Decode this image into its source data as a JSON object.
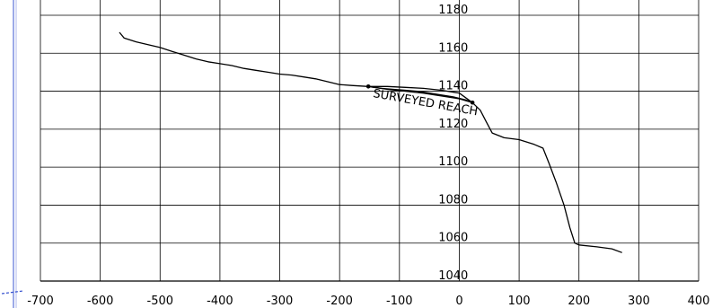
{
  "chart_data": {
    "type": "line",
    "title": "",
    "xlabel": "",
    "ylabel": "",
    "xlim": [
      -700,
      400
    ],
    "ylim": [
      1040,
      1180
    ],
    "x_ticks": [
      -700,
      -600,
      -500,
      -400,
      -300,
      -200,
      -100,
      0,
      100,
      200,
      300,
      400
    ],
    "y_ticks": [
      1040,
      1060,
      1080,
      1100,
      1120,
      1140,
      1160,
      1180
    ],
    "x_tick_labels": [
      "-700",
      "-600",
      "-500",
      "-400",
      "-300",
      "-200",
      "-100",
      "0",
      "100",
      "200",
      "300",
      "400"
    ],
    "y_tick_labels": [
      "1040",
      "1060",
      "1080",
      "1100",
      "1120",
      "1140",
      "1160",
      "1180"
    ],
    "grid": true,
    "series": [
      {
        "color": "#000000",
        "points": [
          [
            -568,
            1171
          ],
          [
            -560,
            1168
          ],
          [
            -540,
            1166
          ],
          [
            -520,
            1164.5
          ],
          [
            -500,
            1163
          ],
          [
            -480,
            1161
          ],
          [
            -460,
            1159
          ],
          [
            -440,
            1157
          ],
          [
            -420,
            1155.5
          ],
          [
            -400,
            1154.5
          ],
          [
            -380,
            1153.5
          ],
          [
            -360,
            1152
          ],
          [
            -340,
            1151
          ],
          [
            -320,
            1150
          ],
          [
            -300,
            1149
          ],
          [
            -280,
            1148.5
          ],
          [
            -260,
            1147.5
          ],
          [
            -240,
            1146.5
          ],
          [
            -220,
            1145
          ],
          [
            -200,
            1143.5
          ],
          [
            -180,
            1143
          ],
          [
            -152,
            1142.5
          ],
          [
            -130,
            1141.5
          ],
          [
            -110,
            1141
          ],
          [
            -90,
            1140.5
          ],
          [
            -70,
            1140
          ],
          [
            -50,
            1139
          ],
          [
            -30,
            1138
          ],
          [
            -10,
            1137
          ],
          [
            10,
            1135.5
          ],
          [
            22,
            1134
          ],
          [
            35,
            1130
          ],
          [
            45,
            1124
          ],
          [
            55,
            1118
          ],
          [
            75,
            1115.5
          ],
          [
            100,
            1114.5
          ],
          [
            125,
            1112
          ],
          [
            140,
            1110
          ],
          [
            150,
            1102
          ],
          [
            162,
            1092
          ],
          [
            175,
            1080
          ],
          [
            185,
            1068
          ],
          [
            193,
            1060
          ],
          [
            200,
            1059
          ],
          [
            230,
            1058
          ],
          [
            255,
            1057
          ],
          [
            272,
            1055
          ]
        ]
      },
      {
        "color": "#000000",
        "points": [
          [
            -152,
            1142.5
          ],
          [
            -120,
            1142.5
          ],
          [
            -90,
            1142
          ],
          [
            -60,
            1141.5
          ],
          [
            -30,
            1140.5
          ],
          [
            0,
            1139
          ],
          [
            22,
            1134
          ]
        ]
      },
      {
        "color": "#000000",
        "points": [
          [
            -152,
            1142.5
          ],
          [
            -120,
            1141
          ],
          [
            -90,
            1140
          ],
          [
            -60,
            1139
          ],
          [
            -30,
            1137.5
          ],
          [
            0,
            1136
          ],
          [
            22,
            1134
          ]
        ]
      }
    ],
    "markers": [
      {
        "x": -152,
        "y": 1142.5
      },
      {
        "x": 22,
        "y": 1134
      }
    ],
    "annotations": [
      {
        "text": "SURVEYED REACH",
        "x": -145,
        "y": 1137,
        "rotation_deg": 10
      }
    ]
  }
}
